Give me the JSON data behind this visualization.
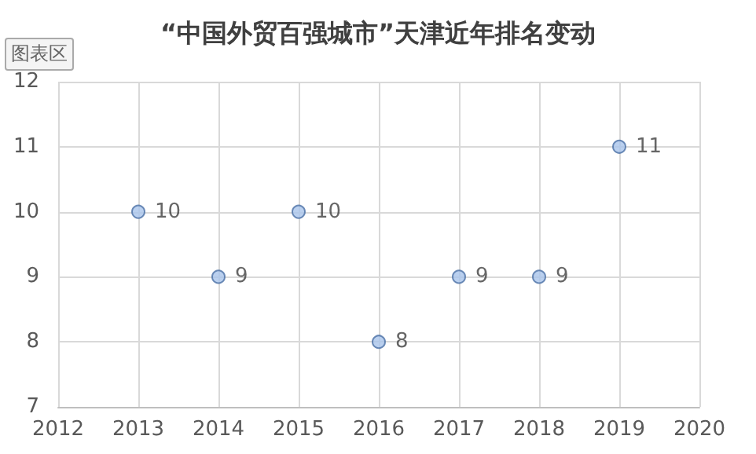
{
  "chart_data": {
    "type": "scatter",
    "title": "“中国外贸百强城市”天津近年排名变动",
    "annotations": [
      "图表区"
    ],
    "x": [
      2013,
      2014,
      2015,
      2016,
      2017,
      2018,
      2019
    ],
    "series": [
      {
        "color": "#a9c4eb",
        "values": [
          10,
          9,
          10,
          8,
          9,
          9,
          11
        ]
      }
    ],
    "xlim": [
      2012,
      2020
    ],
    "xticks": [
      2012,
      2013,
      2014,
      2015,
      2016,
      2017,
      2018,
      2019,
      2020
    ],
    "ylim": [
      7,
      12
    ],
    "yticks": [
      7,
      8,
      9,
      10,
      11,
      12
    ],
    "grid": true,
    "marker": "circle",
    "data_labels": true
  }
}
